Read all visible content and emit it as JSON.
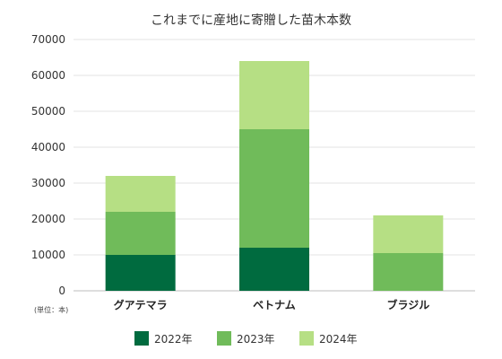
{
  "chart_data": {
    "type": "bar",
    "stacked": true,
    "title": "これまでに産地に寄贈した苗木本数",
    "unit_note": "(単位：本)",
    "categories": [
      "グアテマラ",
      "ベトナム",
      "ブラジル"
    ],
    "series": [
      {
        "name": "2022年",
        "color": "#006b3f",
        "values": [
          10000,
          12000,
          0
        ]
      },
      {
        "name": "2023年",
        "color": "#70bb5a",
        "values": [
          12000,
          33000,
          10500
        ]
      },
      {
        "name": "2024年",
        "color": "#b6df84",
        "values": [
          10000,
          19000,
          10500
        ]
      }
    ],
    "ylim": [
      0,
      70000
    ],
    "yticks": [
      0,
      10000,
      20000,
      30000,
      40000,
      50000,
      60000,
      70000
    ],
    "grid": true,
    "legend_position": "bottom"
  }
}
